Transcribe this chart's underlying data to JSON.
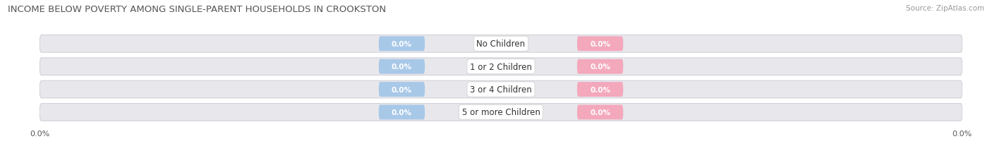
{
  "title": "INCOME BELOW POVERTY AMONG SINGLE-PARENT HOUSEHOLDS IN CROOKSTON",
  "source": "Source: ZipAtlas.com",
  "categories": [
    "No Children",
    "1 or 2 Children",
    "3 or 4 Children",
    "5 or more Children"
  ],
  "single_father_values": [
    0.0,
    0.0,
    0.0,
    0.0
  ],
  "single_mother_values": [
    0.0,
    0.0,
    0.0,
    0.0
  ],
  "father_color": "#a8c8e8",
  "mother_color": "#f4a8bc",
  "bar_bg_color": "#e8e8ec",
  "bar_bg_edge_color": "#d0d0d8",
  "title_fontsize": 9.5,
  "source_fontsize": 7.5,
  "value_fontsize": 7.5,
  "category_fontsize": 8.5,
  "axis_label_fontsize": 8,
  "legend_fontsize": 8.5,
  "background_color": "#ffffff"
}
